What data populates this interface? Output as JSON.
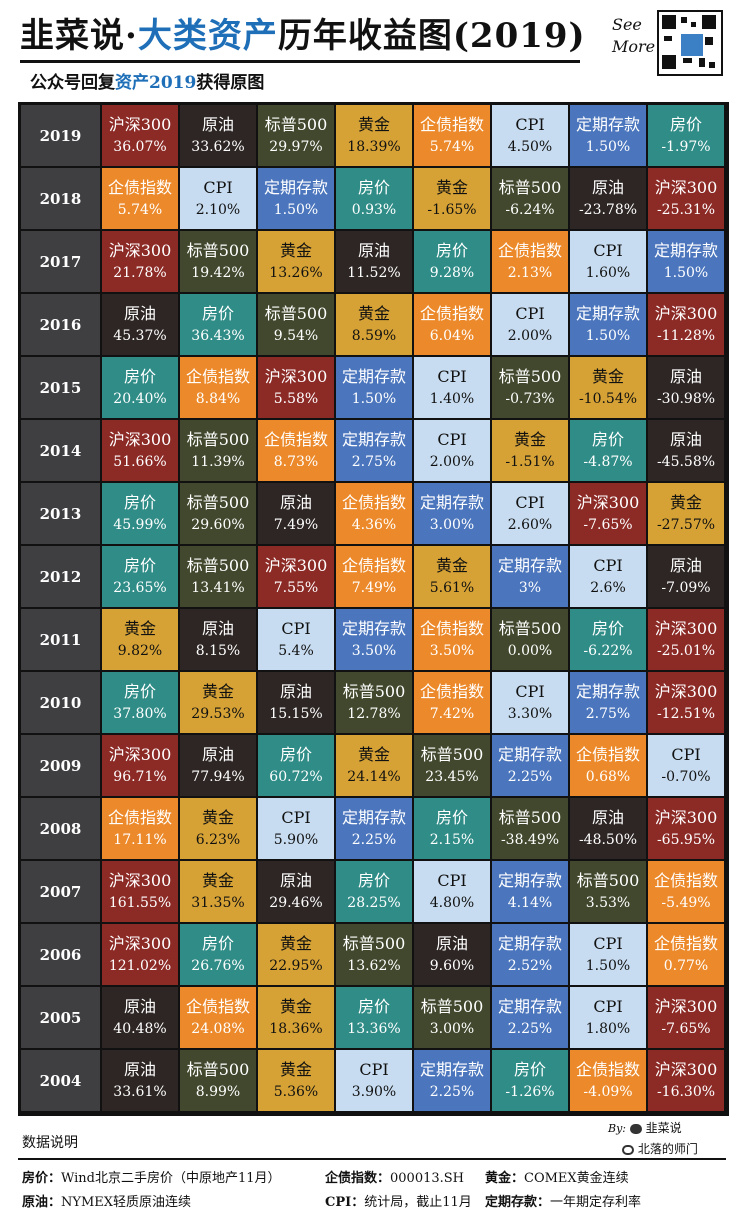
{
  "header": {
    "title_part1": "韭菜说·",
    "title_accent": "大类资产",
    "title_part2": "历年收益图(2019)",
    "subtitle_part1": "公众号回复",
    "subtitle_accent": "资产2019",
    "subtitle_part2": "获得原图",
    "see": "See",
    "more": "More",
    "qr_icon": "qr-code-icon"
  },
  "colors": {
    "沪深300": "#8c2a26",
    "原油": "#2d2624",
    "标普500": "#41482d",
    "黄金": "#d6a235",
    "企债指数": "#ec8a2b",
    "CPI": "#c7dcf0",
    "定期存款": "#4b76bd",
    "房价": "#2f8c87",
    "year_bg": "#3f3f42"
  },
  "chart_data": {
    "type": "table",
    "title": "韭菜说·大类资产历年收益图(2019)",
    "years": [
      "2019",
      "2018",
      "2017",
      "2016",
      "2015",
      "2014",
      "2013",
      "2012",
      "2011",
      "2010",
      "2009",
      "2008",
      "2007",
      "2006",
      "2005",
      "2004"
    ],
    "rows": [
      [
        [
          "沪深300",
          "36.07%"
        ],
        [
          "原油",
          "33.62%"
        ],
        [
          "标普500",
          "29.97%"
        ],
        [
          "黄金",
          "18.39%"
        ],
        [
          "企债指数",
          "5.74%"
        ],
        [
          "CPI",
          "4.50%"
        ],
        [
          "定期存款",
          "1.50%"
        ],
        [
          "房价",
          "-1.97%"
        ]
      ],
      [
        [
          "企债指数",
          "5.74%"
        ],
        [
          "CPI",
          "2.10%"
        ],
        [
          "定期存款",
          "1.50%"
        ],
        [
          "房价",
          "0.93%"
        ],
        [
          "黄金",
          "-1.65%"
        ],
        [
          "标普500",
          "-6.24%"
        ],
        [
          "原油",
          "-23.78%"
        ],
        [
          "沪深300",
          "-25.31%"
        ]
      ],
      [
        [
          "沪深300",
          "21.78%"
        ],
        [
          "标普500",
          "19.42%"
        ],
        [
          "黄金",
          "13.26%"
        ],
        [
          "原油",
          "11.52%"
        ],
        [
          "房价",
          "9.28%"
        ],
        [
          "企债指数",
          "2.13%"
        ],
        [
          "CPI",
          "1.60%"
        ],
        [
          "定期存款",
          "1.50%"
        ]
      ],
      [
        [
          "原油",
          "45.37%"
        ],
        [
          "房价",
          "36.43%"
        ],
        [
          "标普500",
          "9.54%"
        ],
        [
          "黄金",
          "8.59%"
        ],
        [
          "企债指数",
          "6.04%"
        ],
        [
          "CPI",
          "2.00%"
        ],
        [
          "定期存款",
          "1.50%"
        ],
        [
          "沪深300",
          "-11.28%"
        ]
      ],
      [
        [
          "房价",
          "20.40%"
        ],
        [
          "企债指数",
          "8.84%"
        ],
        [
          "沪深300",
          "5.58%"
        ],
        [
          "定期存款",
          "1.50%"
        ],
        [
          "CPI",
          "1.40%"
        ],
        [
          "标普500",
          "-0.73%"
        ],
        [
          "黄金",
          "-10.54%"
        ],
        [
          "原油",
          "-30.98%"
        ]
      ],
      [
        [
          "沪深300",
          "51.66%"
        ],
        [
          "标普500",
          "11.39%"
        ],
        [
          "企债指数",
          "8.73%"
        ],
        [
          "定期存款",
          "2.75%"
        ],
        [
          "CPI",
          "2.00%"
        ],
        [
          "黄金",
          "-1.51%"
        ],
        [
          "房价",
          "-4.87%"
        ],
        [
          "原油",
          "-45.58%"
        ]
      ],
      [
        [
          "房价",
          "45.99%"
        ],
        [
          "标普500",
          "29.60%"
        ],
        [
          "原油",
          "7.49%"
        ],
        [
          "企债指数",
          "4.36%"
        ],
        [
          "定期存款",
          "3.00%"
        ],
        [
          "CPI",
          "2.60%"
        ],
        [
          "沪深300",
          "-7.65%"
        ],
        [
          "黄金",
          "-27.57%"
        ]
      ],
      [
        [
          "房价",
          "23.65%"
        ],
        [
          "标普500",
          "13.41%"
        ],
        [
          "沪深300",
          "7.55%"
        ],
        [
          "企债指数",
          "7.49%"
        ],
        [
          "黄金",
          "5.61%"
        ],
        [
          "定期存款",
          "3%"
        ],
        [
          "CPI",
          "2.6%"
        ],
        [
          "原油",
          "-7.09%"
        ]
      ],
      [
        [
          "黄金",
          "9.82%"
        ],
        [
          "原油",
          "8.15%"
        ],
        [
          "CPI",
          "5.4%"
        ],
        [
          "定期存款",
          "3.50%"
        ],
        [
          "企债指数",
          "3.50%"
        ],
        [
          "标普500",
          "0.00%"
        ],
        [
          "房价",
          "-6.22%"
        ],
        [
          "沪深300",
          "-25.01%"
        ]
      ],
      [
        [
          "房价",
          "37.80%"
        ],
        [
          "黄金",
          "29.53%"
        ],
        [
          "原油",
          "15.15%"
        ],
        [
          "标普500",
          "12.78%"
        ],
        [
          "企债指数",
          "7.42%"
        ],
        [
          "CPI",
          "3.30%"
        ],
        [
          "定期存款",
          "2.75%"
        ],
        [
          "沪深300",
          "-12.51%"
        ]
      ],
      [
        [
          "沪深300",
          "96.71%"
        ],
        [
          "原油",
          "77.94%"
        ],
        [
          "房价",
          "60.72%"
        ],
        [
          "黄金",
          "24.14%"
        ],
        [
          "标普500",
          "23.45%"
        ],
        [
          "定期存款",
          "2.25%"
        ],
        [
          "企债指数",
          "0.68%"
        ],
        [
          "CPI",
          "-0.70%"
        ]
      ],
      [
        [
          "企债指数",
          "17.11%"
        ],
        [
          "黄金",
          "6.23%"
        ],
        [
          "CPI",
          "5.90%"
        ],
        [
          "定期存款",
          "2.25%"
        ],
        [
          "房价",
          "2.15%"
        ],
        [
          "标普500",
          "-38.49%"
        ],
        [
          "原油",
          "-48.50%"
        ],
        [
          "沪深300",
          "-65.95%"
        ]
      ],
      [
        [
          "沪深300",
          "161.55%"
        ],
        [
          "黄金",
          "31.35%"
        ],
        [
          "原油",
          "29.46%"
        ],
        [
          "房价",
          "28.25%"
        ],
        [
          "CPI",
          "4.80%"
        ],
        [
          "定期存款",
          "4.14%"
        ],
        [
          "标普500",
          "3.53%"
        ],
        [
          "企债指数",
          "-5.49%"
        ]
      ],
      [
        [
          "沪深300",
          "121.02%"
        ],
        [
          "房价",
          "26.76%"
        ],
        [
          "黄金",
          "22.95%"
        ],
        [
          "标普500",
          "13.62%"
        ],
        [
          "原油",
          "9.60%"
        ],
        [
          "定期存款",
          "2.52%"
        ],
        [
          "CPI",
          "1.50%"
        ],
        [
          "企债指数",
          "0.77%"
        ]
      ],
      [
        [
          "原油",
          "40.48%"
        ],
        [
          "企债指数",
          "24.08%"
        ],
        [
          "黄金",
          "18.36%"
        ],
        [
          "房价",
          "13.36%"
        ],
        [
          "标普500",
          "3.00%"
        ],
        [
          "定期存款",
          "2.25%"
        ],
        [
          "CPI",
          "1.80%"
        ],
        [
          "沪深300",
          "-7.65%"
        ]
      ],
      [
        [
          "原油",
          "33.61%"
        ],
        [
          "标普500",
          "8.99%"
        ],
        [
          "黄金",
          "5.36%"
        ],
        [
          "CPI",
          "3.90%"
        ],
        [
          "定期存款",
          "2.25%"
        ],
        [
          "房价",
          "-1.26%"
        ],
        [
          "企债指数",
          "-4.09%"
        ],
        [
          "沪深300",
          "-16.30%"
        ]
      ]
    ]
  },
  "footer": {
    "notes_title": "数据说明",
    "by": "By:",
    "author1": "韭菜说",
    "author2": "北落的师门",
    "wechat_icon": "wechat-icon",
    "weibo_icon": "weibo-icon",
    "notes": [
      {
        "label": "房价：",
        "text": "Wind北京二手房价（中原地产11月）"
      },
      {
        "label": "企债指数：",
        "text": "000013.SH"
      },
      {
        "label": "黄金：",
        "text": "COMEX黄金连续"
      },
      {
        "label": "原油：",
        "text": "NYMEX轻质原油连续"
      },
      {
        "label": "CPI：",
        "text": "统计局，截止11月"
      },
      {
        "label": "定期存款：",
        "text": "一年期定存利率"
      }
    ]
  }
}
